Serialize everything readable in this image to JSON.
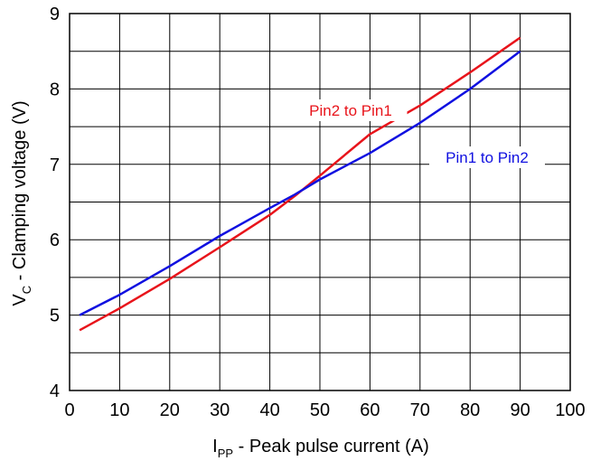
{
  "chart_data": {
    "type": "line",
    "xlabel": {
      "main": "I",
      "sub": "PP",
      "rest": " - Peak pulse current (A)"
    },
    "ylabel": {
      "main": "V",
      "sub": "C",
      "rest": " - Clamping voltage (V)"
    },
    "xlim": [
      0,
      100
    ],
    "ylim": [
      4,
      9
    ],
    "xticks": [
      0,
      10,
      20,
      30,
      40,
      50,
      60,
      70,
      80,
      90,
      100
    ],
    "yticks": [
      4,
      5,
      6,
      7,
      8,
      9
    ],
    "grid": true,
    "series": [
      {
        "name": "Pin2 to Pin1",
        "color": "#e8141b",
        "points": [
          [
            2,
            4.8
          ],
          [
            10,
            5.09
          ],
          [
            20,
            5.48
          ],
          [
            30,
            5.9
          ],
          [
            40,
            6.33
          ],
          [
            45,
            6.58
          ],
          [
            50,
            6.85
          ],
          [
            60,
            7.4
          ],
          [
            70,
            7.78
          ],
          [
            80,
            8.22
          ],
          [
            90,
            8.68
          ]
        ]
      },
      {
        "name": "Pin1 to Pin2",
        "color": "#1010e0",
        "points": [
          [
            2,
            5.0
          ],
          [
            10,
            5.27
          ],
          [
            20,
            5.65
          ],
          [
            30,
            6.05
          ],
          [
            40,
            6.42
          ],
          [
            45,
            6.6
          ],
          [
            50,
            6.8
          ],
          [
            60,
            7.15
          ],
          [
            70,
            7.55
          ],
          [
            80,
            8.0
          ],
          [
            90,
            8.5
          ]
        ]
      }
    ]
  }
}
